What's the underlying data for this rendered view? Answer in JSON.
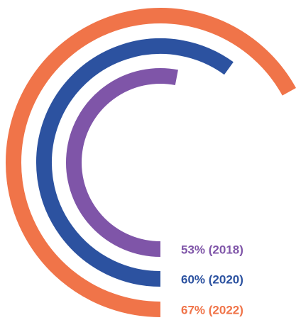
{
  "chart_data": {
    "type": "radial-bar",
    "values": [
      53,
      60,
      67
    ],
    "value_labels": [
      "53% (2018)",
      "60% (2020)",
      "67% (2022)"
    ],
    "colors": [
      "#7f55a8",
      "#2c52a0",
      "#f07449"
    ],
    "ylim": [
      0,
      100
    ]
  }
}
